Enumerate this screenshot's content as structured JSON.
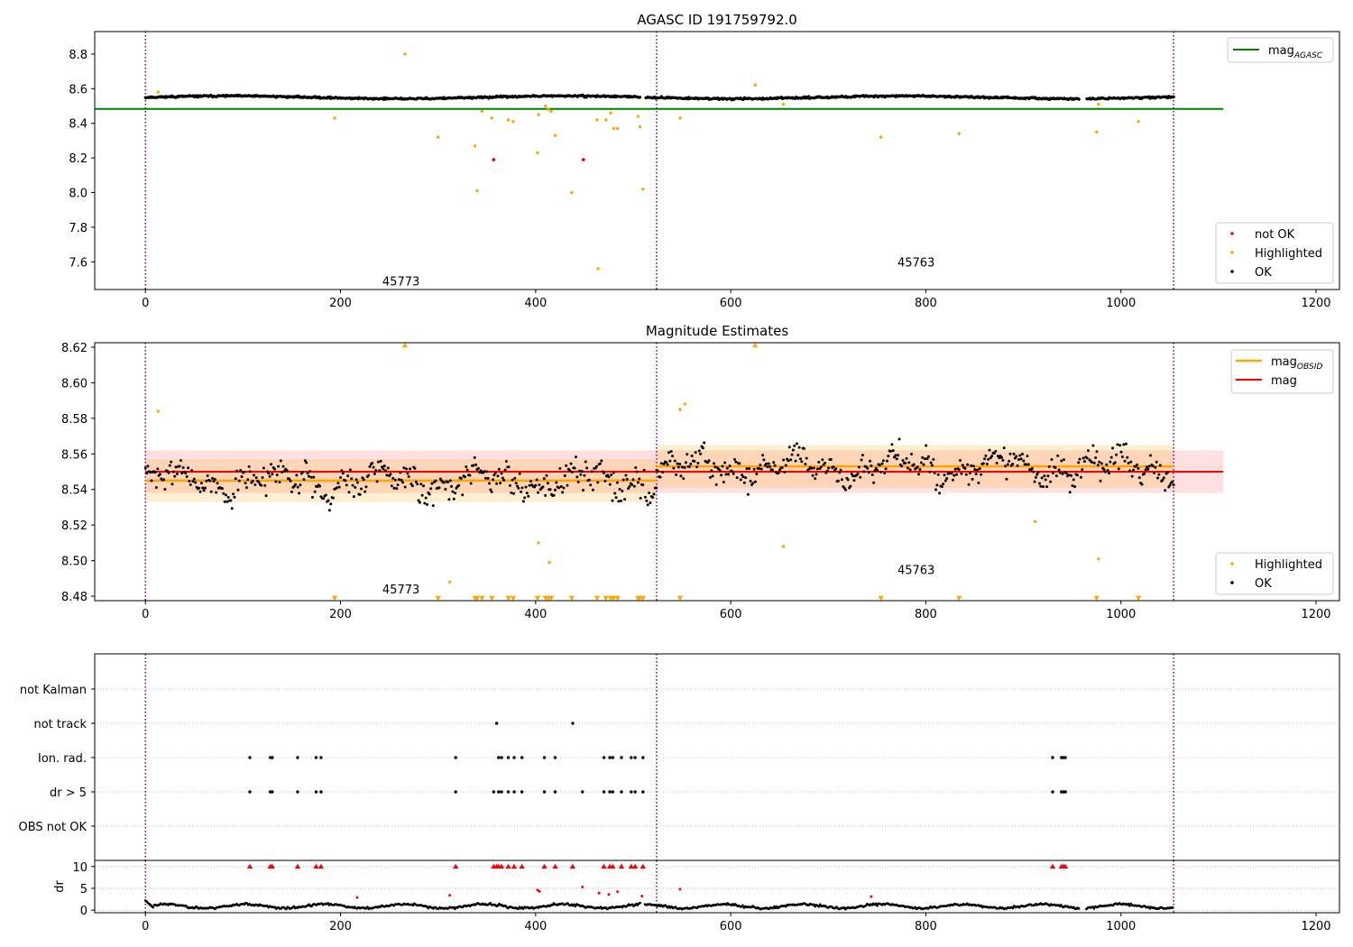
{
  "chart_data": [
    {
      "type": "scatter",
      "title": "AGASC ID 191759792.0",
      "xlim": [
        -52,
        1224
      ],
      "ylim": [
        7.44,
        8.93
      ],
      "xticks": [
        0,
        200,
        400,
        600,
        800,
        1000,
        1200
      ],
      "yticks": [
        7.6,
        7.8,
        8.0,
        8.2,
        8.4,
        8.6,
        8.8
      ],
      "obs_boundaries": [
        0,
        524,
        1054
      ],
      "obs_labels": [
        {
          "text": "45773",
          "x": 262,
          "y": 7.49
        },
        {
          "text": "45763",
          "x": 790,
          "y": 7.6
        }
      ],
      "reference_line": {
        "name": "mag_AGASC",
        "y": 8.483,
        "color": "#008000"
      },
      "ok_trend": {
        "base": 8.55,
        "amplitude": 0.008,
        "noise": 0.009
      },
      "ok_gaps": [
        [
          508,
          512
        ],
        [
          958,
          964
        ]
      ],
      "legend_top": [
        {
          "label": "mag",
          "sub": "AGASC",
          "color": "#008000"
        }
      ],
      "legend_bottom": [
        {
          "label": "not OK",
          "color": "#ff0000"
        },
        {
          "label": "Highlighted",
          "color": "#ffa500"
        },
        {
          "label": "OK",
          "color": "#000000"
        }
      ],
      "highlighted_points": [
        [
          13,
          8.58
        ],
        [
          194,
          8.43
        ],
        [
          266,
          8.8
        ],
        [
          300,
          8.32
        ],
        [
          338,
          8.27
        ],
        [
          340,
          8.01
        ],
        [
          345,
          8.47
        ],
        [
          355,
          8.43
        ],
        [
          372,
          8.42
        ],
        [
          377,
          8.41
        ],
        [
          402,
          8.23
        ],
        [
          403,
          8.45
        ],
        [
          410,
          8.5
        ],
        [
          413,
          8.48
        ],
        [
          416,
          8.47
        ],
        [
          420,
          8.33
        ],
        [
          437,
          8.0
        ],
        [
          463,
          8.42
        ],
        [
          464,
          7.56
        ],
        [
          472,
          8.42
        ],
        [
          477,
          8.46
        ],
        [
          480,
          8.37
        ],
        [
          484,
          8.37
        ],
        [
          505,
          8.44
        ],
        [
          507,
          8.38
        ],
        [
          510,
          8.02
        ],
        [
          548,
          8.43
        ],
        [
          625,
          8.62
        ],
        [
          654,
          8.51
        ],
        [
          754,
          8.32
        ],
        [
          834,
          8.34
        ],
        [
          975,
          8.35
        ],
        [
          977,
          8.51
        ],
        [
          1018,
          8.41
        ]
      ],
      "not_ok_points": [
        [
          357,
          8.19
        ],
        [
          449,
          8.19
        ]
      ]
    },
    {
      "type": "scatter",
      "title": "Magnitude Estimates",
      "xlim": [
        -52,
        1224
      ],
      "ylim": [
        8.4775,
        8.6225
      ],
      "xticks": [
        0,
        200,
        400,
        600,
        800,
        1000,
        1200
      ],
      "yticks": [
        8.48,
        8.5,
        8.52,
        8.54,
        8.56,
        8.58,
        8.6,
        8.62
      ],
      "obs_boundaries": [
        0,
        524,
        1054
      ],
      "obs_labels": [
        {
          "text": "45773",
          "x": 262,
          "y": 8.484
        },
        {
          "text": "45763",
          "x": 790,
          "y": 8.495
        }
      ],
      "mag_line": {
        "name": "mag",
        "y": 8.55,
        "x_end": 1105,
        "band": [
          8.538,
          8.562
        ],
        "color": "#ff0000"
      },
      "obsid_mag": [
        {
          "x_start": 0,
          "x_end": 524,
          "y": 8.545,
          "band": [
            8.533,
            8.557
          ]
        },
        {
          "x_start": 524,
          "x_end": 1054,
          "y": 8.553,
          "band": [
            8.541,
            8.565
          ]
        }
      ],
      "ok_segments": [
        {
          "x_start": 0,
          "x_end": 524,
          "base": 8.545,
          "noise": 0.011
        },
        {
          "x_start": 524,
          "x_end": 1054,
          "base": 8.552,
          "noise": 0.009
        }
      ],
      "legend_top": [
        {
          "label": "mag",
          "sub": "OBSID",
          "color": "#ffa500"
        },
        {
          "label": "mag",
          "sub": "",
          "color": "#ff0000"
        }
      ],
      "legend_bottom": [
        {
          "label": "Highlighted",
          "color": "#ffa500"
        },
        {
          "label": "OK",
          "color": "#000000"
        }
      ],
      "highlighted_points": [
        [
          13,
          8.584
        ],
        [
          312,
          8.488
        ],
        [
          403,
          8.51
        ],
        [
          414,
          8.499
        ],
        [
          548,
          8.585
        ],
        [
          553,
          8.588
        ],
        [
          654,
          8.508
        ],
        [
          912,
          8.522
        ],
        [
          977,
          8.501
        ]
      ],
      "clipped_high_x": [
        266,
        625
      ],
      "clipped_low_x": [
        194,
        300,
        338,
        340,
        345,
        355,
        372,
        377,
        402,
        410,
        413,
        416,
        437,
        463,
        472,
        477,
        480,
        484,
        505,
        507,
        510,
        548,
        754,
        834,
        975,
        1018
      ]
    },
    {
      "type": "scatter",
      "ylabel": "",
      "xlim": [
        -52,
        1224
      ],
      "categories": [
        "not Kalman",
        "not track",
        "Ion. rad.",
        "dr > 5",
        "OBS not OK"
      ],
      "obs_boundaries": [
        0,
        524,
        1054
      ],
      "not_track_x": [
        360,
        438
      ],
      "ion_rad_x": [
        107,
        128,
        130,
        156,
        175,
        180,
        318,
        362,
        365,
        372,
        378,
        386,
        409,
        420,
        470,
        476,
        479,
        488,
        498,
        502,
        510,
        930,
        939,
        941,
        943
      ],
      "dr_gt5_x": [
        107,
        128,
        130,
        156,
        175,
        180,
        318,
        357,
        362,
        365,
        372,
        378,
        386,
        409,
        420,
        448,
        470,
        476,
        479,
        488,
        498,
        502,
        510,
        930,
        939,
        941,
        943
      ]
    },
    {
      "type": "scatter",
      "ylabel": "dr",
      "xlim": [
        -52,
        1224
      ],
      "ylim": [
        -0.6,
        11.4
      ],
      "yticks": [
        0,
        5,
        10
      ],
      "obs_boundaries": [
        0,
        524,
        1054
      ],
      "clipped_x": [
        107,
        128,
        130,
        156,
        175,
        180,
        318,
        357,
        360,
        362,
        365,
        372,
        378,
        386,
        409,
        420,
        438,
        470,
        476,
        479,
        488,
        498,
        502,
        510,
        930,
        939,
        941,
        943
      ],
      "outlier_points": [
        [
          217,
          2.9
        ],
        [
          312,
          3.4
        ],
        [
          402,
          4.6
        ],
        [
          404,
          4.3
        ],
        [
          448,
          5.3
        ],
        [
          465,
          3.9
        ],
        [
          475,
          3.6
        ],
        [
          484,
          4.2
        ],
        [
          509,
          3.2
        ],
        [
          548,
          4.8
        ],
        [
          744,
          3.1
        ]
      ],
      "ok_gaps": [
        [
          508,
          512
        ],
        [
          958,
          964
        ]
      ]
    }
  ]
}
